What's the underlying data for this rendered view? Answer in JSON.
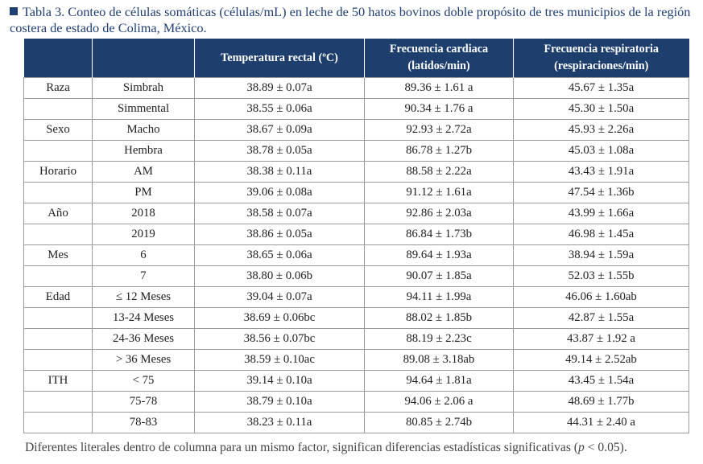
{
  "caption": "Tabla 3. Conteo de células somáticas (células/mL) en leche de 50 hatos bovinos doble propósito de tres municipios de la región costera de estado de Colima, México.",
  "headers": {
    "factor": "",
    "level": "",
    "temp": "Temperatura rectal (ºC)",
    "hr_line1": "Frecuencia cardiaca",
    "hr_line2": "(latidos/min)",
    "rr_line1": "Frecuencia respiratoria",
    "rr_line2": "(respiraciones/min)"
  },
  "rows": [
    {
      "factor": "Raza",
      "level": "Simbrah",
      "temp": "38.89 ± 0.07a",
      "hr": "89.36 ± 1.61 a",
      "rr": "45.67 ± 1.35a"
    },
    {
      "factor": "",
      "level": "Simmental",
      "temp": "38.55 ± 0.06a",
      "hr": "90.34 ± 1.76 a",
      "rr": "45.30 ± 1.50a"
    },
    {
      "factor": "Sexo",
      "level": "Macho",
      "temp": "38.67 ± 0.09a",
      "hr": "92.93 ± 2.72a",
      "rr": "45.93 ± 2.26a"
    },
    {
      "factor": "",
      "level": "Hembra",
      "temp": "38.78 ± 0.05a",
      "hr": "86.78 ± 1.27b",
      "rr": "45.03 ± 1.08a"
    },
    {
      "factor": "Horario",
      "level": "AM",
      "temp": "38.38 ± 0.11a",
      "hr": "88.58 ± 2.22a",
      "rr": "43.43 ± 1.91a"
    },
    {
      "factor": "",
      "level": "PM",
      "temp": "39.06 ± 0.08a",
      "hr": "91.12 ± 1.61a",
      "rr": "47.54 ± 1.36b"
    },
    {
      "factor": "Año",
      "level": "2018",
      "temp": "38.58 ± 0.07a",
      "hr": "92.86 ± 2.03a",
      "rr": "43.99 ± 1.66a"
    },
    {
      "factor": "",
      "level": "2019",
      "temp": "38.86 ± 0.05a",
      "hr": "86.84 ± 1.73b",
      "rr": "46.98 ± 1.45a"
    },
    {
      "factor": "Mes",
      "level": "6",
      "temp": "38.65 ± 0.06a",
      "hr": "89.64 ± 1.93a",
      "rr": "38.94 ± 1.59a"
    },
    {
      "factor": "",
      "level": "7",
      "temp": "38.80 ± 0.06b",
      "hr": "90.07 ± 1.85a",
      "rr": "52.03 ± 1.55b"
    },
    {
      "factor": "Edad",
      "level": "≤ 12 Meses",
      "temp": "39.04 ± 0.07a",
      "hr": "94.11 ± 1.99a",
      "rr": "46.06 ± 1.60ab"
    },
    {
      "factor": "",
      "level": "13-24 Meses",
      "temp": "38.69 ± 0.06bc",
      "hr": "88.02 ± 1.85b",
      "rr": "42.87 ± 1.55a"
    },
    {
      "factor": "",
      "level": "24-36 Meses",
      "temp": "38.56 ± 0.07bc",
      "hr": "88.19 ± 2.23c",
      "rr": "43.87 ± 1.92 a"
    },
    {
      "factor": "",
      "level": "> 36 Meses",
      "temp": "38.59 ± 0.10ac",
      "hr": "89.08 ± 3.18ab",
      "rr": "49.14 ± 2.52ab"
    },
    {
      "factor": "ITH",
      "level": "< 75",
      "temp": "39.14 ± 0.10a",
      "hr": "94.64 ± 1.81a",
      "rr": "43.45 ± 1.54a"
    },
    {
      "factor": "",
      "level": "75-78",
      "temp": "38.79 ± 0.10a",
      "hr": "94.06 ± 2.06 a",
      "rr": "48.69 ± 1.77b"
    },
    {
      "factor": "",
      "level": "78-83",
      "temp": "38.23 ± 0.11a",
      "hr": "80.85 ± 2.74b",
      "rr": "44.31 ± 2.40 a"
    }
  ],
  "footnote": {
    "before": "Diferentes literales dentro de columna para un mismo factor, significan diferencias estadísticas significativas (",
    "p": "p",
    "after": " < 0.05)."
  },
  "colors": {
    "header_bg": "#1e3f6e",
    "caption": "#1f3f73"
  }
}
